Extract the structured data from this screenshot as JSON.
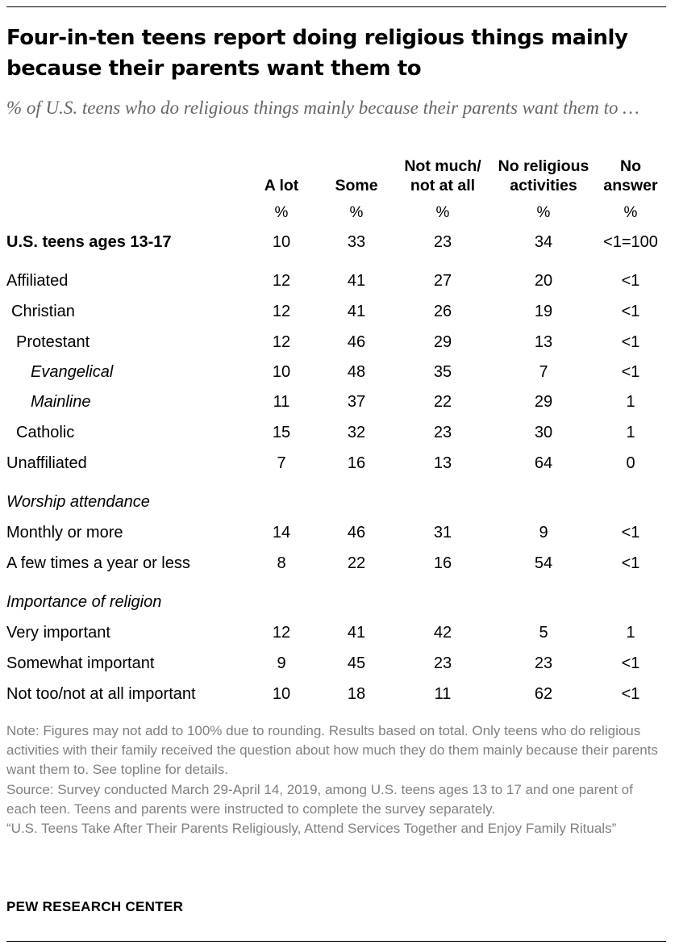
{
  "title": "Four-in-ten teens report doing religious things mainly because their parents want them to",
  "subtitle": "% of U.S. teens who do religious things mainly because their parents want them to …",
  "columns": [
    {
      "line1": "",
      "line2": "A lot",
      "unit": "%"
    },
    {
      "line1": "",
      "line2": "Some",
      "unit": "%"
    },
    {
      "line1": "Not much/",
      "line2": "not at all",
      "unit": "%"
    },
    {
      "line1": "No religious",
      "line2": "activities",
      "unit": "%"
    },
    {
      "line1": "No",
      "line2": "answer",
      "unit": "%"
    }
  ],
  "rows": [
    {
      "label": "U.S. teens ages 13-17",
      "values": [
        "10",
        "33",
        "23",
        "34",
        "<1=100"
      ]
    },
    {
      "label": "Affiliated",
      "values": [
        "12",
        "41",
        "27",
        "20",
        "<1"
      ]
    },
    {
      "label": "Christian",
      "values": [
        "12",
        "41",
        "26",
        "19",
        "<1"
      ]
    },
    {
      "label": "Protestant",
      "values": [
        "12",
        "46",
        "29",
        "13",
        "<1"
      ]
    },
    {
      "label": "Evangelical",
      "values": [
        "10",
        "48",
        "35",
        "7",
        "<1"
      ]
    },
    {
      "label": "Mainline",
      "values": [
        "11",
        "37",
        "22",
        "29",
        "1"
      ]
    },
    {
      "label": "Catholic",
      "values": [
        "15",
        "32",
        "23",
        "30",
        "1"
      ]
    },
    {
      "label": "Unaffiliated",
      "values": [
        "7",
        "16",
        "13",
        "64",
        "0"
      ]
    },
    {
      "label": "Worship attendance",
      "values": []
    },
    {
      "label": "Monthly or more",
      "values": [
        "14",
        "46",
        "31",
        "9",
        "<1"
      ]
    },
    {
      "label": "A few times a year or less",
      "values": [
        "8",
        "22",
        "16",
        "54",
        "<1"
      ]
    },
    {
      "label": "Importance of religion",
      "values": []
    },
    {
      "label": "Very important",
      "values": [
        "12",
        "41",
        "42",
        "5",
        "1"
      ]
    },
    {
      "label": "Somewhat important",
      "values": [
        "9",
        "45",
        "23",
        "23",
        "<1"
      ]
    },
    {
      "label": "Not too/not at all important",
      "values": [
        "10",
        "18",
        "11",
        "62",
        "<1"
      ]
    }
  ],
  "notes": {
    "note": "Note: Figures may not add to 100% due to rounding. Results based on total. Only teens who do religious activities with their family received the question about how much they do them mainly because their parents want them to. See topline for details.",
    "source": "Source: Survey conducted March 29-April 14, 2019, among U.S. teens ages 13 to 17 and one parent of each teen. Teens and parents were instructed to complete the survey separately.",
    "report": "“U.S. Teens Take After Their Parents Religiously, Attend Services Together and Enjoy Family Rituals”"
  },
  "footer": "PEW RESEARCH CENTER",
  "chart_data": {
    "type": "table",
    "title": "Four-in-ten teens report doing religious things mainly because their parents want them to",
    "subtitle": "% of U.S. teens who do religious things mainly because their parents want them to …",
    "columns": [
      "A lot",
      "Some",
      "Not much/ not at all",
      "No religious activities",
      "No answer"
    ],
    "rows": [
      {
        "label": "U.S. teens ages 13-17",
        "values": [
          "10",
          "33",
          "23",
          "34",
          "<1=100"
        ]
      },
      {
        "label": "Affiliated",
        "values": [
          "12",
          "41",
          "27",
          "20",
          "<1"
        ]
      },
      {
        "label": "Christian",
        "values": [
          "12",
          "41",
          "26",
          "19",
          "<1"
        ]
      },
      {
        "label": "Protestant",
        "values": [
          "12",
          "46",
          "29",
          "13",
          "<1"
        ]
      },
      {
        "label": "Evangelical",
        "values": [
          "10",
          "48",
          "35",
          "7",
          "<1"
        ]
      },
      {
        "label": "Mainline",
        "values": [
          "11",
          "37",
          "22",
          "29",
          "1"
        ]
      },
      {
        "label": "Catholic",
        "values": [
          "15",
          "32",
          "23",
          "30",
          "1"
        ]
      },
      {
        "label": "Unaffiliated",
        "values": [
          "7",
          "16",
          "13",
          "64",
          "0"
        ]
      },
      {
        "label": "Monthly or more",
        "values": [
          "14",
          "46",
          "31",
          "9",
          "<1"
        ]
      },
      {
        "label": "A few times a year or less",
        "values": [
          "8",
          "22",
          "16",
          "54",
          "<1"
        ]
      },
      {
        "label": "Very important",
        "values": [
          "12",
          "41",
          "42",
          "5",
          "1"
        ]
      },
      {
        "label": "Somewhat important",
        "values": [
          "9",
          "45",
          "23",
          "23",
          "<1"
        ]
      },
      {
        "label": "Not too/not at all important",
        "values": [
          "10",
          "18",
          "11",
          "62",
          "<1"
        ]
      }
    ]
  }
}
